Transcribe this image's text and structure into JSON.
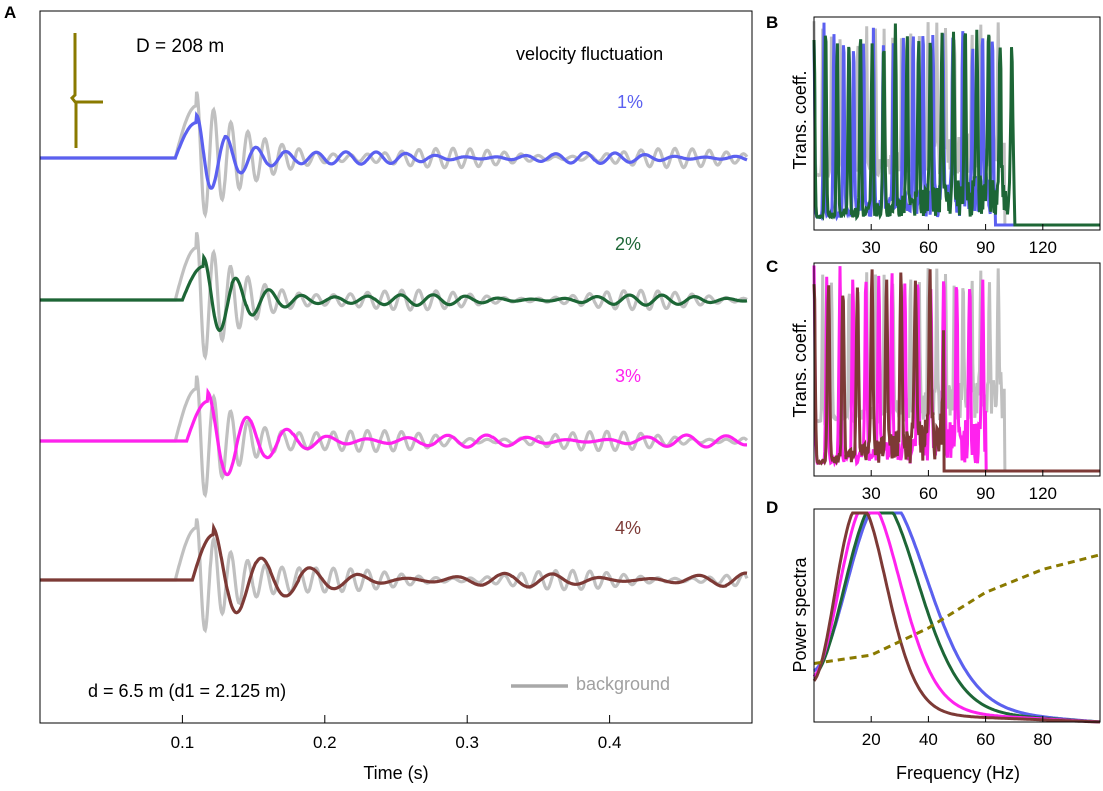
{
  "colors": {
    "pct1": "#5b60f0",
    "pct2": "#1d6636",
    "pct3": "#ff22ee",
    "pct4": "#7d3a36",
    "background": "#c0c0c0",
    "source": "#8a7a00"
  },
  "panel_a": {
    "label": "A",
    "D_text": "D = 208 m",
    "header_text": "velocity fluctuation",
    "d_text": "d = 6.5 m (d1 = 2.125 m)",
    "legend_background": "background",
    "xlabel": "Time (s)",
    "xticks": [
      "0.1",
      "0.2",
      "0.3",
      "0.4"
    ],
    "trace_labels": [
      "1%",
      "2%",
      "3%",
      "4%"
    ]
  },
  "panel_b": {
    "label": "B",
    "ylabel": "Trans. coeff.",
    "xticks": [
      "30",
      "60",
      "90",
      "120"
    ]
  },
  "panel_c": {
    "label": "C",
    "ylabel": "Trans. coeff.",
    "xticks": [
      "30",
      "60",
      "90",
      "120"
    ]
  },
  "panel_d": {
    "label": "D",
    "ylabel": "Power spectra",
    "xlabel": "Frequency (Hz)",
    "xticks": [
      "20",
      "40",
      "60",
      "80"
    ]
  },
  "chart_data": [
    {
      "panel": "A",
      "type": "line",
      "xlabel": "Time (s)",
      "ylabel": "",
      "xlim": [
        0,
        0.5
      ],
      "x_ticks": [
        0.1,
        0.2,
        0.3,
        0.4
      ],
      "series": [
        {
          "name": "1%",
          "first_arrival_s": 0.11,
          "peak_period_s": 0.021
        },
        {
          "name": "2%",
          "first_arrival_s": 0.115,
          "peak_period_s": 0.023
        },
        {
          "name": "3%",
          "first_arrival_s": 0.118,
          "peak_period_s": 0.028
        },
        {
          "name": "4%",
          "first_arrival_s": 0.122,
          "peak_period_s": 0.034
        },
        {
          "name": "background",
          "first_arrival_s": 0.11,
          "peak_period_s": 0.012
        }
      ],
      "annotations": [
        "D = 208 m",
        "velocity fluctuation",
        "d = 6.5 m (d1 = 2.125 m)"
      ]
    },
    {
      "panel": "B",
      "type": "line",
      "xlabel": "",
      "ylabel": "Trans. coeff.",
      "xlim": [
        0,
        150
      ],
      "x_ticks": [
        30,
        60,
        90,
        120
      ],
      "series": [
        {
          "name": "background",
          "cutoff_hz": 100
        },
        {
          "name": "1%",
          "cutoff_hz": 95
        },
        {
          "name": "2%",
          "cutoff_hz": 105
        }
      ]
    },
    {
      "panel": "C",
      "type": "line",
      "xlabel": "",
      "ylabel": "Trans. coeff.",
      "xlim": [
        0,
        150
      ],
      "x_ticks": [
        30,
        60,
        90,
        120
      ],
      "series": [
        {
          "name": "background",
          "cutoff_hz": 100
        },
        {
          "name": "3%",
          "cutoff_hz": 90
        },
        {
          "name": "4%",
          "cutoff_hz": 68
        }
      ]
    },
    {
      "panel": "D",
      "type": "line",
      "xlabel": "Frequency (Hz)",
      "ylabel": "Power spectra",
      "xlim": [
        0,
        100
      ],
      "x_ticks": [
        20,
        40,
        60,
        80
      ],
      "series": [
        {
          "name": "background",
          "peak_hz": 25
        },
        {
          "name": "1%",
          "peak_hz": 25
        },
        {
          "name": "2%",
          "peak_hz": 23
        },
        {
          "name": "3%",
          "peak_hz": 19
        },
        {
          "name": "4%",
          "peak_hz": 16
        },
        {
          "name": "source",
          "style": "dashed",
          "x": [
            0,
            20,
            40,
            60,
            80,
            100
          ],
          "y": [
            0.28,
            0.32,
            0.45,
            0.62,
            0.73,
            0.8
          ]
        }
      ]
    }
  ]
}
